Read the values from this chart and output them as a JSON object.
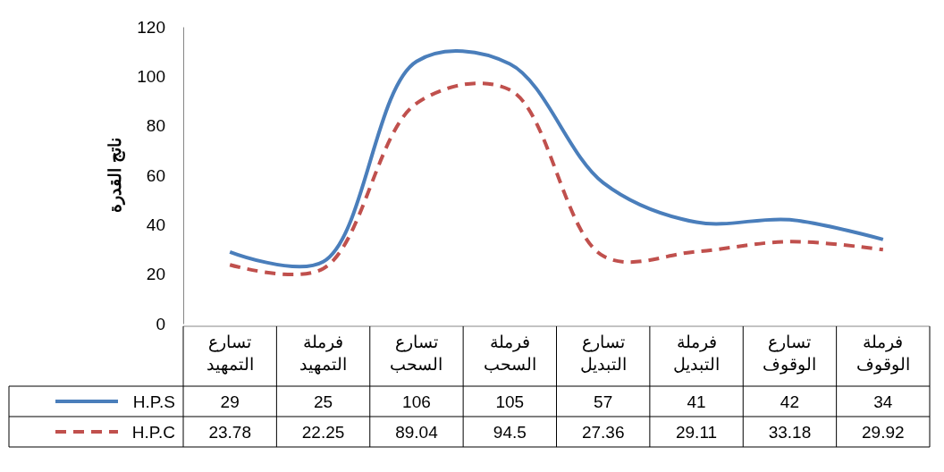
{
  "chart_data": {
    "type": "line",
    "ylabel": "ناتج القدرة",
    "categories": [
      "تسارع التمهيد",
      "فرملة التمهيد",
      "تسارع السحب",
      "فرملة السحب",
      "تسارع التبديل",
      "فرملة التبديل",
      "تسارع الوقوف",
      "فرملة الوقوف"
    ],
    "series": [
      {
        "name": "H.P.S",
        "color": "#4a7ebb",
        "line_style": "solid",
        "values": [
          29,
          25,
          106,
          105,
          57,
          41,
          42,
          34
        ]
      },
      {
        "name": "H.P.C",
        "color": "#c0504d",
        "line_style": "dashed",
        "values": [
          23.78,
          22.25,
          89.04,
          94.5,
          27.36,
          29.11,
          33.18,
          29.92
        ]
      }
    ],
    "ylim": [
      0,
      120
    ],
    "yticks": [
      0,
      20,
      40,
      60,
      80,
      100,
      120
    ],
    "grid": false,
    "legend": "bottom",
    "data_labels": true,
    "marker": "none"
  }
}
